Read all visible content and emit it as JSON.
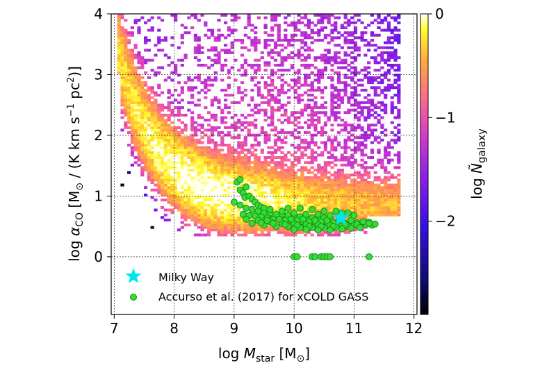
{
  "chart_data": {
    "type": "heatmap",
    "xlabel": {
      "prefix": "log ",
      "var": "M",
      "sub": "star",
      "unit": " [M",
      "unit_sym": "⊙",
      "unit_end": "]"
    },
    "ylabel": {
      "prefix": "log ",
      "var": "α",
      "sub": "CO",
      "middle": " [M",
      "sym": "⊙",
      "rest": " / (K km s",
      "sup1": "−1",
      "rest2": " pc",
      "sup2": "2",
      "end": ")]"
    },
    "colorbar_label": {
      "prefix": "log ",
      "var": "Ñ",
      "sub": "galaxy"
    },
    "xlim": [
      6.95,
      12.05
    ],
    "ylim": [
      -0.95,
      4.0
    ],
    "x_ticks": [
      7,
      8,
      9,
      10,
      11,
      12
    ],
    "y_ticks": [
      0,
      1,
      2,
      3,
      4
    ],
    "colorbar_range": [
      -2.9,
      0
    ],
    "colorbar_ticks": [
      0,
      -1,
      -2
    ],
    "colorbar_tick_labels": [
      "0",
      "−1",
      "−2"
    ],
    "grid": true,
    "colormap": "gnuplot2 (black-blue-purple-pink-orange-yellow-white)",
    "legend_position": "lower-left",
    "series": [
      {
        "name": "Milky Way",
        "type": "scatter",
        "marker": "star",
        "color": "#00e5ee",
        "x": [
          10.78
        ],
        "y": [
          0.64
        ]
      },
      {
        "name": "Accurso et al. (2017) for xCOLD GASS",
        "type": "scatter",
        "marker": "circle",
        "color": "#33dd33",
        "x": [
          9.05,
          9.1,
          9.1,
          9.15,
          9.2,
          9.18,
          9.25,
          9.3,
          9.35,
          9.4,
          9.45,
          9.5,
          9.0,
          9.1,
          9.2,
          9.3,
          9.4,
          9.5,
          9.6,
          9.7,
          9.8,
          9.9,
          10.0,
          10.1,
          10.2,
          10.3,
          10.4,
          10.5,
          10.6,
          9.15,
          9.25,
          9.35,
          9.45,
          9.55,
          9.65,
          9.75,
          9.85,
          9.95,
          10.05,
          10.15,
          10.25,
          10.35,
          10.45,
          10.55,
          10.65,
          10.75,
          10.85,
          10.95,
          11.05,
          11.15,
          11.25,
          11.3,
          9.2,
          9.4,
          9.6,
          9.8,
          10.0,
          10.2,
          10.4,
          10.6,
          10.8,
          11.0,
          11.2,
          9.3,
          9.5,
          9.7,
          9.9,
          10.1,
          10.3,
          10.5,
          10.7,
          10.9,
          11.1,
          11.35,
          9.45,
          9.65,
          9.85,
          10.05,
          10.25,
          10.45,
          10.65,
          10.85,
          11.05,
          11.25,
          9.55,
          9.75,
          9.95,
          10.15,
          10.35,
          10.55,
          10.75,
          10.95,
          11.15,
          9.6,
          9.8,
          10.0,
          10.2,
          10.4,
          10.6,
          10.8,
          11.0,
          9.9,
          10.1,
          10.3,
          10.5,
          10.7,
          10.9,
          10.0,
          10.2,
          10.4,
          10.6,
          10.8,
          10.95,
          11.1,
          10.0,
          10.05,
          10.3,
          10.35,
          10.45,
          10.5,
          10.55,
          10.6,
          11.25
        ],
        "y": [
          1.23,
          1.27,
          1.1,
          1.05,
          1.15,
          0.98,
          1.0,
          0.95,
          0.9,
          0.85,
          0.82,
          0.8,
          0.9,
          0.85,
          0.8,
          0.78,
          0.75,
          0.72,
          0.72,
          0.7,
          0.7,
          0.68,
          0.68,
          0.66,
          0.66,
          0.64,
          0.65,
          0.64,
          0.64,
          0.7,
          0.68,
          0.67,
          0.66,
          0.64,
          0.62,
          0.62,
          0.6,
          0.6,
          0.6,
          0.58,
          0.58,
          0.57,
          0.58,
          0.57,
          0.56,
          0.56,
          0.55,
          0.55,
          0.56,
          0.56,
          0.57,
          0.52,
          0.62,
          0.6,
          0.58,
          0.55,
          0.55,
          0.53,
          0.53,
          0.52,
          0.52,
          0.52,
          0.53,
          0.55,
          0.52,
          0.5,
          0.5,
          0.48,
          0.48,
          0.48,
          0.48,
          0.5,
          0.5,
          0.54,
          0.56,
          0.55,
          0.53,
          0.52,
          0.5,
          0.5,
          0.5,
          0.53,
          0.53,
          0.55,
          0.6,
          0.62,
          0.62,
          0.62,
          0.6,
          0.6,
          0.6,
          0.6,
          0.58,
          0.78,
          0.75,
          0.72,
          0.7,
          0.7,
          0.68,
          0.72,
          0.68,
          0.8,
          0.8,
          0.78,
          0.75,
          0.75,
          0.72,
          0.45,
          0.45,
          0.44,
          0.44,
          0.46,
          0.47,
          0.48,
          0.0,
          0.0,
          0.0,
          0.0,
          0.0,
          0.0,
          0.0,
          0.0,
          0.0
        ]
      }
    ]
  },
  "colors": {
    "heatmap_core": "#ffe84a",
    "heatmap_mid": "#ff7fbf",
    "heatmap_low": "#9c27d8",
    "heatmap_min": "#2a1aa0",
    "star": "#00e5ee",
    "circle_fill": "#33dd33",
    "circle_edge": "#1a8a1a"
  }
}
